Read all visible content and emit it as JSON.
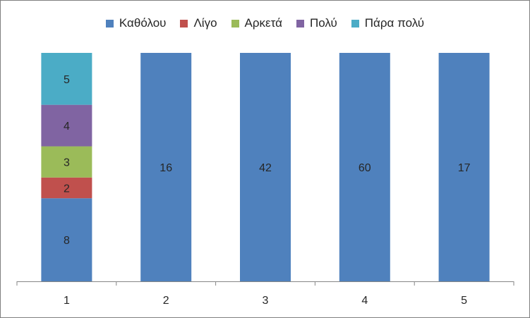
{
  "chart_data": {
    "type": "bar",
    "stacked": true,
    "categories": [
      "1",
      "2",
      "3",
      "4",
      "5"
    ],
    "series": [
      {
        "name": "Καθόλου",
        "color": "#4F81BD",
        "values": [
          8,
          16,
          42,
          60,
          17
        ]
      },
      {
        "name": "Λίγο",
        "color": "#C0504D",
        "values": [
          2,
          0,
          0,
          0,
          0
        ]
      },
      {
        "name": "Αρκετά",
        "color": "#9BBB59",
        "values": [
          3,
          0,
          0,
          0,
          0
        ]
      },
      {
        "name": "Πολύ",
        "color": "#8064A2",
        "values": [
          4,
          0,
          0,
          0,
          0
        ]
      },
      {
        "name": "Πάρα πολύ",
        "color": "#4BACC6",
        "values": [
          5,
          0,
          0,
          0,
          0
        ]
      }
    ],
    "value_type": "percent-stacked",
    "ylim": [
      0,
      100
    ],
    "legend_position": "top",
    "grid": false,
    "axis_color": "#868686",
    "label_color": "#262626"
  }
}
